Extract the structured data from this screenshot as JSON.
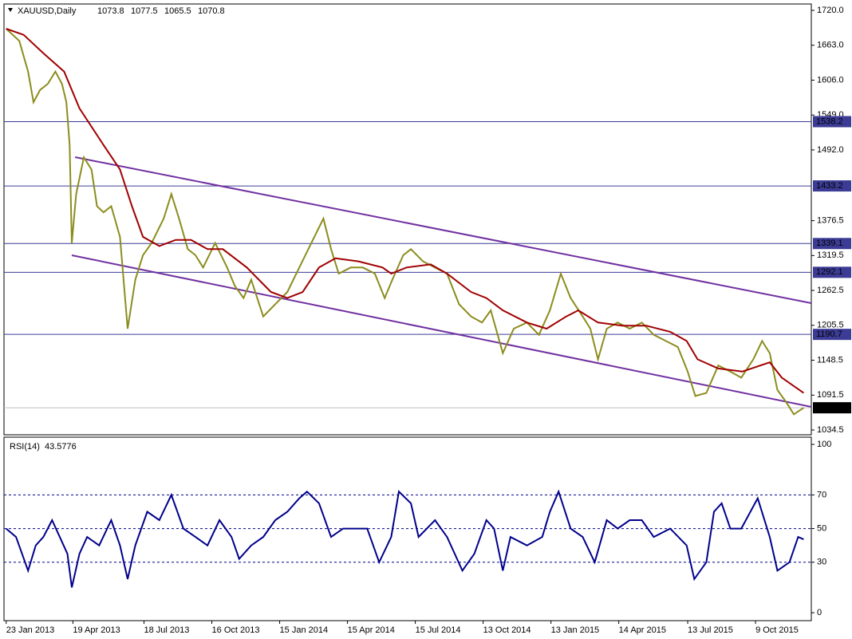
{
  "chart_data": [
    {
      "type": "line",
      "title": "XAUUSD,Daily",
      "ohlc": [
        1073.8,
        1077.5,
        1065.5,
        1070.8
      ],
      "xlim": [
        -2,
        736
      ],
      "ylim": [
        1026.7,
        1730.4
      ],
      "yticks": [
        {
          "value": 1720,
          "label": "1720.0"
        },
        {
          "value": 1663,
          "label": "1663.0"
        },
        {
          "value": 1606,
          "label": "1606.0"
        },
        {
          "value": 1549,
          "label": "1549.0"
        },
        {
          "value": 1492,
          "label": "1492.0"
        },
        1376.5,
        1319.5,
        1262.5,
        1205.5,
        1148.5,
        1091.5,
        1034.5
      ],
      "levels": [
        1538.2,
        1433.2,
        1339.1,
        1292.1,
        1190.7
      ],
      "level_color": "#3c3c96",
      "channel_color": "#7030a0",
      "channels": [
        {
          "x": [
            63,
            736
          ],
          "values": [
            1480.2,
            1241.7
          ]
        },
        {
          "x": [
            60,
            736
          ],
          "values": [
            1319.9,
            1072.3
          ]
        }
      ],
      "series": [
        {
          "color": "#8c8c1e",
          "x": [
            0,
            12,
            20,
            25,
            31,
            38,
            45,
            51,
            55,
            58,
            60,
            64,
            71,
            78,
            83,
            89,
            96,
            104,
            111,
            118,
            125,
            133,
            144,
            151,
            158,
            166,
            173,
            180,
            191,
            202,
            209,
            217,
            224,
            235,
            246,
            257,
            268,
            279,
            290,
            297,
            304,
            315,
            326,
            337,
            346,
            353,
            363,
            370,
            381,
            392,
            403,
            414,
            425,
            435,
            443,
            454,
            464,
            476,
            487,
            497,
            507,
            516,
            527,
            534,
            541,
            549,
            559,
            570,
            581,
            592,
            603,
            614,
            623,
            630,
            640,
            651,
            662,
            672,
            683,
            691,
            698,
            705,
            713,
            720,
            729
          ],
          "values": [
            1690,
            1670,
            1620,
            1570,
            1590,
            1600,
            1620,
            1600,
            1570,
            1500,
            1340,
            1420,
            1480,
            1460,
            1400,
            1390,
            1400,
            1350,
            1200,
            1280,
            1320,
            1340,
            1380,
            1420,
            1380,
            1330,
            1320,
            1300,
            1340,
            1300,
            1270,
            1250,
            1280,
            1220,
            1240,
            1260,
            1300,
            1340,
            1380,
            1330,
            1290,
            1300,
            1300,
            1290,
            1250,
            1280,
            1320,
            1330,
            1310,
            1300,
            1290,
            1240,
            1220,
            1210,
            1230,
            1160,
            1200,
            1210,
            1190,
            1230,
            1290,
            1250,
            1220,
            1200,
            1150,
            1200,
            1210,
            1200,
            1210,
            1190,
            1180,
            1170,
            1130,
            1090,
            1095,
            1140,
            1130,
            1120,
            1150,
            1180,
            1160,
            1100,
            1080,
            1060,
            1070.8
          ]
        },
        {
          "color": "#a00000",
          "x": [
            0,
            16,
            34,
            53,
            67,
            89,
            104,
            115,
            125,
            140,
            155,
            169,
            184,
            198,
            220,
            242,
            257,
            271,
            286,
            301,
            322,
            344,
            352,
            366,
            388,
            403,
            425,
            439,
            454,
            476,
            494,
            512,
            523,
            541,
            563,
            585,
            607,
            622,
            632,
            651,
            673,
            698,
            709,
            729
          ],
          "values": [
            1690,
            1680,
            1650,
            1620,
            1560,
            1500,
            1460,
            1400,
            1350,
            1335,
            1345,
            1345,
            1330,
            1330,
            1300,
            1260,
            1250,
            1260,
            1300,
            1315,
            1310,
            1300,
            1290,
            1300,
            1305,
            1290,
            1260,
            1250,
            1230,
            1210,
            1200,
            1220,
            1230,
            1210,
            1205,
            1205,
            1195,
            1180,
            1150,
            1135,
            1130,
            1145,
            1120,
            1095
          ]
        }
      ]
    },
    {
      "type": "line",
      "title": "RSI(14)",
      "value": 43.5776,
      "xlim": [
        -2,
        736
      ],
      "ylim": [
        -4.7,
        104.3
      ],
      "yticks": [
        100,
        70,
        50,
        30,
        0
      ],
      "levels": [
        70,
        50,
        30
      ],
      "xticks": [
        {
          "value": 0,
          "label": "23 Jan 2013"
        },
        {
          "value": 61,
          "label": "19 Apr 2013"
        },
        {
          "value": 126,
          "label": "18 Jul 2013"
        },
        {
          "value": 188,
          "label": "16 Oct 2013"
        },
        {
          "value": 250,
          "label": "15 Jan 2014"
        },
        {
          "value": 312,
          "label": "15 Apr 2014"
        },
        {
          "value": 374,
          "label": "15 Jul 2014"
        },
        {
          "value": 436,
          "label": "13 Oct 2014"
        },
        {
          "value": 498,
          "label": "13 Jan 2015"
        },
        {
          "value": 560,
          "label": "14 Apr 2015"
        },
        {
          "value": 623,
          "label": "13 Jul 2015"
        },
        {
          "value": 685,
          "label": "9 Oct 2015"
        }
      ],
      "series": [
        {
          "color": "#00008b",
          "x": [
            0,
            9,
            20,
            27,
            34,
            42,
            49,
            56,
            60,
            67,
            74,
            85,
            96,
            104,
            111,
            118,
            129,
            140,
            151,
            162,
            173,
            184,
            195,
            206,
            213,
            224,
            235,
            246,
            257,
            268,
            275,
            286,
            297,
            308,
            319,
            330,
            341,
            352,
            359,
            370,
            377,
            392,
            403,
            417,
            428,
            439,
            446,
            454,
            461,
            476,
            490,
            497,
            505,
            516,
            527,
            538,
            549,
            559,
            570,
            581,
            592,
            607,
            622,
            629,
            640,
            647,
            654,
            662,
            672,
            687,
            698,
            705,
            716,
            724,
            729
          ],
          "values": [
            50,
            45,
            25,
            40,
            45,
            55,
            45,
            35,
            15,
            35,
            45,
            40,
            55,
            40,
            20,
            40,
            60,
            55,
            70,
            50,
            45,
            40,
            55,
            45,
            32,
            40,
            45,
            55,
            60,
            68,
            72,
            65,
            45,
            50,
            50,
            50,
            30,
            45,
            72,
            65,
            45,
            55,
            45,
            25,
            35,
            55,
            50,
            25,
            45,
            40,
            45,
            60,
            72,
            50,
            45,
            30,
            55,
            50,
            55,
            55,
            45,
            50,
            40,
            20,
            30,
            60,
            65,
            50,
            50,
            68,
            45,
            25,
            30,
            45,
            43.6
          ]
        }
      ]
    }
  ]
}
